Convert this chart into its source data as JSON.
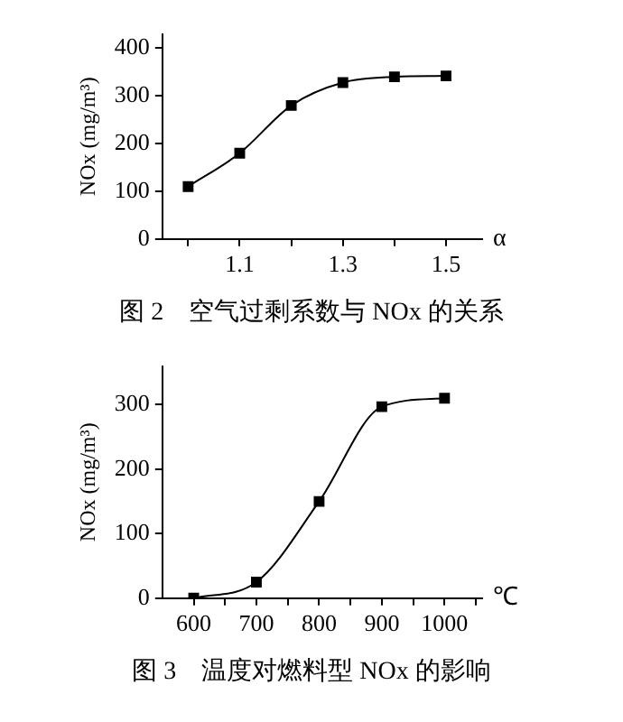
{
  "chart_data": [
    {
      "type": "line",
      "title": "图 2　空气过剩系数与 NOx 的关系",
      "xlabel": "α",
      "ylabel": "NOx (mg/m³)",
      "x": [
        1.0,
        1.1,
        1.2,
        1.3,
        1.4,
        1.5
      ],
      "values": [
        110,
        180,
        280,
        328,
        340,
        342
      ],
      "color": "#000000",
      "marker": "square",
      "xlim": [
        0.95,
        1.57
      ],
      "xticks": [
        {
          "value": 1.0,
          "label": null
        },
        1.1,
        {
          "value": 1.2,
          "label": null
        },
        1.3,
        {
          "value": 1.4,
          "label": null
        },
        1.5
      ],
      "ylim": [
        0,
        430
      ],
      "yticks": [
        0,
        100,
        200,
        300,
        400
      ],
      "grid": false,
      "legend": false
    },
    {
      "type": "line",
      "title": "图 3　温度对燃料型 NOx 的影响",
      "xlabel": "℃",
      "ylabel": "NOx (mg/m³)",
      "x": [
        600,
        700,
        800,
        900,
        1000
      ],
      "values": [
        0,
        25,
        150,
        297,
        310
      ],
      "color": "#000000",
      "marker": "square",
      "xlim": [
        550,
        1060
      ],
      "xticks": [
        600,
        {
          "value": 650,
          "label": null
        },
        700,
        {
          "value": 750,
          "label": null
        },
        800,
        {
          "value": 850,
          "label": null
        },
        900,
        {
          "value": 950,
          "label": null
        },
        1000,
        {
          "value": 1050,
          "label": null
        }
      ],
      "ylim": [
        0,
        360
      ],
      "yticks": [
        0,
        100,
        200,
        300
      ],
      "grid": false,
      "legend": false
    }
  ]
}
